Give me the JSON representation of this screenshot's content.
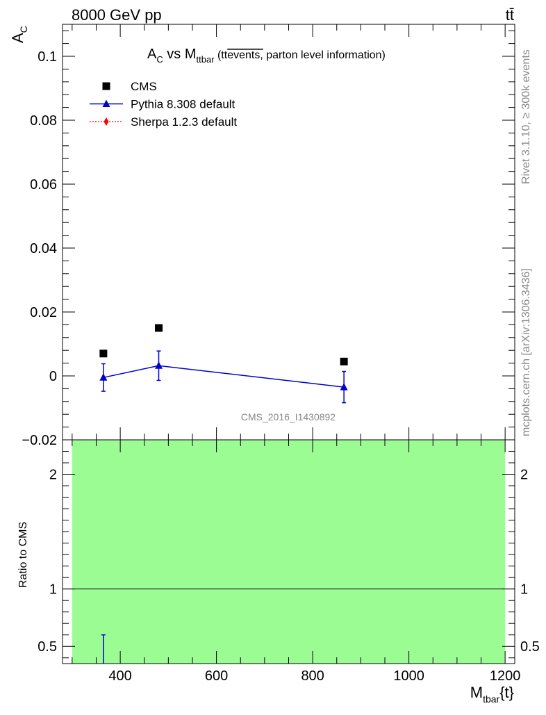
{
  "header": {
    "energy_label": "8000 GeV pp",
    "process_label": "tt̄"
  },
  "side": {
    "rivet_label": "Rivet 3.1.10, ≥ 300k events",
    "mcplots_label": "mcplots.cern.ch [arXiv:1306.3436]"
  },
  "watermark": "CMS_2016_I1430892",
  "plot_title": {
    "a": "A",
    "a_sub": "C",
    "vs": " vs M",
    "m_sub": "ttbar",
    "paren_open": " (tt",
    "overlined": "events,",
    "rest": " parton level information)"
  },
  "axes": {
    "y_main": "A",
    "y_main_sub": "C",
    "y_ratio": "Ratio to CMS",
    "x": "M",
    "x_sub": "tbar",
    "x_tail": "{t}"
  },
  "legend": [
    {
      "name": "CMS",
      "marker": "square",
      "color": "#000000"
    },
    {
      "name": "Pythia 8.308 default",
      "marker": "triangle",
      "color": "#0000cc"
    },
    {
      "name": "Sherpa 1.2.3 default",
      "marker": "diamond",
      "color": "#ff0000"
    }
  ],
  "colors": {
    "cms": "#000000",
    "pythia": "#0000cc",
    "sherpa": "#ff0000",
    "band": "#9cfc94"
  },
  "chart_data": [
    {
      "type": "scatter",
      "panel": "main",
      "xlim": [
        280,
        1220
      ],
      "ylim": [
        -0.02,
        0.11
      ],
      "y_ticks": [
        -0.02,
        0,
        0.02,
        0.04,
        0.06,
        0.08,
        0.1
      ],
      "y_tick_labels": [
        "−0.02",
        "0",
        "0.02",
        "0.04",
        "0.06",
        "0.08",
        "0.1"
      ],
      "series": [
        {
          "name": "CMS",
          "x": [
            365,
            480,
            865
          ],
          "y": [
            0.007,
            0.015,
            0.0045
          ]
        },
        {
          "name": "Pythia 8.308 default",
          "x": [
            365,
            480,
            865
          ],
          "y": [
            -0.0005,
            0.0032,
            -0.0035
          ],
          "yerr": [
            0.0043,
            0.0046,
            0.0049
          ]
        },
        {
          "name": "Sherpa 1.2.3 default",
          "x": [],
          "y": []
        }
      ]
    },
    {
      "type": "line",
      "panel": "ratio",
      "xlim": [
        280,
        1220
      ],
      "ylim": [
        0.35,
        2.3
      ],
      "y_ticks": [
        0.5,
        1,
        2
      ],
      "y_tick_labels": [
        "0.5",
        "1",
        "2"
      ],
      "x_ticks": [
        400,
        600,
        800,
        1000,
        1200
      ],
      "x_tick_labels": [
        "400",
        "600",
        "800",
        "1000",
        "1200"
      ],
      "reference_line": 1,
      "band": {
        "x": [
          300,
          1200
        ],
        "y": [
          0.35,
          2.3
        ]
      },
      "series": [
        {
          "name": "Pythia 8.308 default",
          "x": [
            365
          ],
          "y_low": [
            0.35
          ],
          "y_high": [
            0.6
          ]
        }
      ]
    }
  ]
}
